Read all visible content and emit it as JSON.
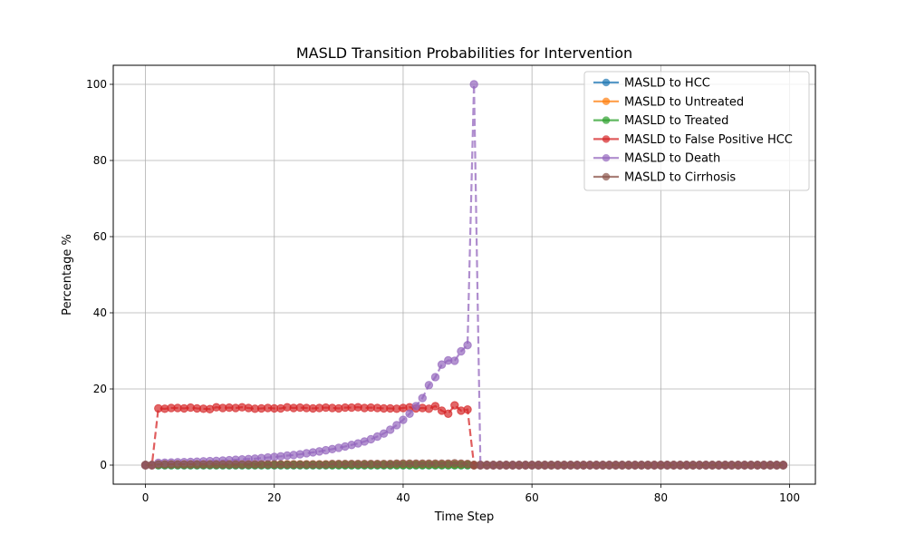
{
  "chart_data": {
    "type": "line",
    "title": "MASLD Transition Probabilities for Intervention",
    "xlabel": "Time Step",
    "ylabel": "Percentage %",
    "xlim": [
      -5,
      104
    ],
    "ylim": [
      -5,
      105
    ],
    "xticks": [
      0,
      20,
      40,
      60,
      80,
      100
    ],
    "yticks": [
      0,
      20,
      40,
      60,
      80,
      100
    ],
    "grid": true,
    "legend_position": "upper-right",
    "x_start": 0,
    "x_end": 99,
    "series": [
      {
        "name": "MASLD to HCC",
        "color": "#1f77b4",
        "values": [
          0,
          0,
          0,
          0,
          0,
          0,
          0,
          0,
          0,
          0,
          0,
          0,
          0,
          0,
          0,
          0,
          0,
          0,
          0,
          0,
          0,
          0,
          0,
          0,
          0,
          0,
          0,
          0,
          0,
          0,
          0,
          0,
          0,
          0,
          0,
          0,
          0,
          0,
          0,
          0,
          0,
          0,
          0,
          0,
          0,
          0,
          0,
          0,
          0,
          0,
          0,
          0,
          0,
          0,
          0,
          0,
          0,
          0,
          0,
          0,
          0,
          0,
          0,
          0,
          0,
          0,
          0,
          0,
          0,
          0,
          0,
          0,
          0,
          0,
          0,
          0,
          0,
          0,
          0,
          0,
          0,
          0,
          0,
          0,
          0,
          0,
          0,
          0,
          0,
          0,
          0,
          0,
          0,
          0,
          0,
          0,
          0,
          0,
          0,
          0
        ]
      },
      {
        "name": "MASLD to Untreated",
        "color": "#ff7f0e",
        "values": [
          0,
          0,
          0.2,
          0.2,
          0.2,
          0.2,
          0.2,
          0.2,
          0.2,
          0.2,
          0.2,
          0.2,
          0.2,
          0.2,
          0.2,
          0.2,
          0.2,
          0.2,
          0.2,
          0.2,
          0.2,
          0.2,
          0.2,
          0.2,
          0.2,
          0.2,
          0.2,
          0.2,
          0.2,
          0.2,
          0.2,
          0.2,
          0.2,
          0.2,
          0.2,
          0.2,
          0.2,
          0.2,
          0.2,
          0.2,
          0.2,
          0.2,
          0.2,
          0.2,
          0.2,
          0.2,
          0.2,
          0.2,
          0.2,
          0.2,
          0.2,
          0,
          0,
          0,
          0,
          0,
          0,
          0,
          0,
          0,
          0,
          0,
          0,
          0,
          0,
          0,
          0,
          0,
          0,
          0,
          0,
          0,
          0,
          0,
          0,
          0,
          0,
          0,
          0,
          0,
          0,
          0,
          0,
          0,
          0,
          0,
          0,
          0,
          0,
          0,
          0,
          0,
          0,
          0,
          0,
          0,
          0,
          0,
          0,
          0
        ]
      },
      {
        "name": "MASLD to Treated",
        "color": "#2ca02c",
        "values": [
          0,
          0,
          0,
          0,
          0,
          0,
          0,
          0,
          0,
          0,
          0,
          0,
          0,
          0,
          0,
          0,
          0,
          0,
          0,
          0,
          0,
          0,
          0,
          0,
          0,
          0,
          0,
          0,
          0,
          0,
          0,
          0,
          0,
          0,
          0,
          0,
          0,
          0,
          0,
          0,
          0,
          0,
          0,
          0,
          0,
          0,
          0,
          0,
          0,
          0,
          0,
          0,
          0,
          0,
          0,
          0,
          0,
          0,
          0,
          0,
          0,
          0,
          0,
          0,
          0,
          0,
          0,
          0,
          0,
          0,
          0,
          0,
          0,
          0,
          0,
          0,
          0,
          0,
          0,
          0,
          0,
          0,
          0,
          0,
          0,
          0,
          0,
          0,
          0,
          0,
          0,
          0,
          0,
          0,
          0,
          0,
          0,
          0,
          0,
          0
        ]
      },
      {
        "name": "MASLD to False Positive HCC",
        "color": "#d62728",
        "values": [
          0,
          0,
          14.9,
          14.8,
          15,
          15,
          14.9,
          15.1,
          14.9,
          14.8,
          14.7,
          15.2,
          15,
          15.1,
          15,
          15.2,
          15,
          14.8,
          14.9,
          15,
          14.9,
          14.9,
          15.2,
          15,
          15.1,
          15,
          14.9,
          15,
          15.1,
          15,
          14.9,
          15.1,
          15.1,
          15.2,
          15,
          15.1,
          15,
          14.9,
          14.9,
          14.8,
          15,
          15.2,
          14.9,
          15,
          14.8,
          15.5,
          14.3,
          13.5,
          15.7,
          14.3,
          14.6,
          0,
          0,
          0,
          0,
          0,
          0,
          0,
          0,
          0,
          0,
          0,
          0,
          0,
          0,
          0,
          0,
          0,
          0,
          0,
          0,
          0,
          0,
          0,
          0,
          0,
          0,
          0,
          0,
          0,
          0,
          0,
          0,
          0,
          0,
          0,
          0,
          0,
          0,
          0,
          0,
          0,
          0,
          0,
          0,
          0,
          0,
          0,
          0,
          0
        ]
      },
      {
        "name": "MASLD to Death",
        "color": "#9467bd",
        "values": [
          0,
          0,
          0.6,
          0.65,
          0.7,
          0.75,
          0.8,
          0.85,
          0.9,
          1,
          1.05,
          1.1,
          1.2,
          1.3,
          1.4,
          1.5,
          1.6,
          1.7,
          1.85,
          2,
          2.15,
          2.3,
          2.5,
          2.65,
          2.85,
          3.1,
          3.35,
          3.6,
          3.9,
          4.2,
          4.55,
          4.9,
          5.3,
          5.7,
          6.2,
          6.8,
          7.5,
          8.3,
          9.3,
          10.5,
          11.9,
          13.5,
          15.5,
          17.6,
          21,
          23.1,
          26.4,
          27.5,
          27.4,
          29.9,
          31.5,
          100,
          0,
          0,
          0,
          0,
          0,
          0,
          0,
          0,
          0,
          0,
          0,
          0,
          0,
          0,
          0,
          0,
          0,
          0,
          0,
          0,
          0,
          0,
          0,
          0,
          0,
          0,
          0,
          0,
          0,
          0,
          0,
          0,
          0,
          0,
          0,
          0,
          0,
          0,
          0,
          0,
          0,
          0,
          0,
          0,
          0,
          0,
          0,
          0
        ]
      },
      {
        "name": "MASLD to Cirrhosis",
        "color": "#8c564b",
        "values": [
          0,
          0,
          0.2,
          0.2,
          0.2,
          0.2,
          0.2,
          0.2,
          0.2,
          0.2,
          0.2,
          0.2,
          0.2,
          0.2,
          0.2,
          0.2,
          0.2,
          0.2,
          0.2,
          0.2,
          0.2,
          0.2,
          0.2,
          0.2,
          0.2,
          0.2,
          0.2,
          0.2,
          0.2,
          0.3,
          0.3,
          0.3,
          0.3,
          0.3,
          0.3,
          0.3,
          0.3,
          0.3,
          0.3,
          0.4,
          0.4,
          0.4,
          0.4,
          0.4,
          0.4,
          0.4,
          0.4,
          0.4,
          0.5,
          0.4,
          0.3,
          0,
          0,
          0,
          0,
          0,
          0,
          0,
          0,
          0,
          0,
          0,
          0,
          0,
          0,
          0,
          0,
          0,
          0,
          0,
          0,
          0,
          0,
          0,
          0,
          0,
          0,
          0,
          0,
          0,
          0,
          0,
          0,
          0,
          0,
          0,
          0,
          0,
          0,
          0,
          0,
          0,
          0,
          0,
          0,
          0,
          0,
          0,
          0,
          0
        ]
      }
    ]
  }
}
